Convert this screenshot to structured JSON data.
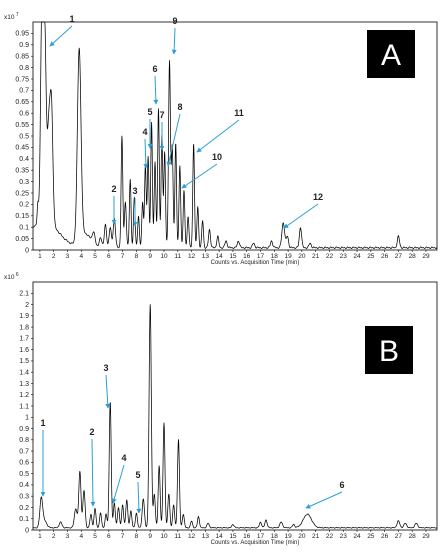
{
  "chart_data": [
    {
      "type": "line",
      "panel_label": "A",
      "y_multiplier": "x10 7",
      "xlabel": "Counts vs. Acquisition Time (min)",
      "ylabel": "",
      "xlim": [
        0.5,
        29.8
      ],
      "ylim": [
        0,
        1.0
      ],
      "x_ticks": [
        "1",
        "2",
        "3",
        "4",
        "5",
        "6",
        "7",
        "8",
        "9",
        "10",
        "11",
        "12",
        "13",
        "14",
        "15",
        "16",
        "17",
        "18",
        "19",
        "20",
        "21",
        "22",
        "23",
        "24",
        "25",
        "26",
        "27",
        "28",
        "29"
      ],
      "y_ticks": [
        "0",
        "0.05",
        "0.1",
        "0.15",
        "0.2",
        "0.25",
        "0.3",
        "0.35",
        "0.4",
        "0.45",
        "0.5",
        "0.55",
        "0.6",
        "0.65",
        "0.7",
        "0.75",
        "0.8",
        "0.85",
        "0.9",
        "0.95"
      ],
      "line_color": "#000000",
      "baseline": 0.01,
      "peaks": [
        {
          "x": 0.85,
          "y": 0.08,
          "w": 0.05
        },
        {
          "x": 1.15,
          "y": 0.93,
          "w": 0.1
        },
        {
          "x": 1.35,
          "y": 0.78,
          "w": 0.1
        },
        {
          "x": 1.65,
          "y": 0.42,
          "w": 0.12
        },
        {
          "x": 1.85,
          "y": 0.45,
          "w": 0.1
        },
        {
          "x": 1.3,
          "y": 0.12,
          "w": 1.0
        },
        {
          "x": 3.85,
          "y": 0.84,
          "w": 0.13
        },
        {
          "x": 4.3,
          "y": 0.06,
          "w": 0.4
        },
        {
          "x": 4.9,
          "y": 0.05,
          "w": 0.1
        },
        {
          "x": 5.4,
          "y": 0.04,
          "w": 0.1
        },
        {
          "x": 5.75,
          "y": 0.1,
          "w": 0.08
        },
        {
          "x": 6.1,
          "y": 0.09,
          "w": 0.08
        },
        {
          "x": 6.4,
          "y": 0.13,
          "w": 0.08
        },
        {
          "x": 6.95,
          "y": 0.49,
          "w": 0.06
        },
        {
          "x": 7.2,
          "y": 0.2,
          "w": 0.07
        },
        {
          "x": 7.55,
          "y": 0.3,
          "w": 0.06
        },
        {
          "x": 7.85,
          "y": 0.22,
          "w": 0.06
        },
        {
          "x": 8.15,
          "y": 0.14,
          "w": 0.06
        },
        {
          "x": 8.45,
          "y": 0.2,
          "w": 0.06
        },
        {
          "x": 8.65,
          "y": 0.36,
          "w": 0.06
        },
        {
          "x": 8.85,
          "y": 0.4,
          "w": 0.06
        },
        {
          "x": 9.1,
          "y": 0.55,
          "w": 0.06
        },
        {
          "x": 9.35,
          "y": 0.38,
          "w": 0.06
        },
        {
          "x": 9.6,
          "y": 0.61,
          "w": 0.06
        },
        {
          "x": 9.85,
          "y": 0.5,
          "w": 0.06
        },
        {
          "x": 10.05,
          "y": 0.42,
          "w": 0.06
        },
        {
          "x": 10.4,
          "y": 0.82,
          "w": 0.07
        },
        {
          "x": 10.6,
          "y": 0.44,
          "w": 0.06
        },
        {
          "x": 10.85,
          "y": 0.46,
          "w": 0.06
        },
        {
          "x": 11.15,
          "y": 0.36,
          "w": 0.06
        },
        {
          "x": 11.45,
          "y": 0.25,
          "w": 0.06
        },
        {
          "x": 11.75,
          "y": 0.14,
          "w": 0.06
        },
        {
          "x": 12.15,
          "y": 0.46,
          "w": 0.06
        },
        {
          "x": 12.45,
          "y": 0.18,
          "w": 0.06
        },
        {
          "x": 12.8,
          "y": 0.12,
          "w": 0.06
        },
        {
          "x": 13.3,
          "y": 0.08,
          "w": 0.07
        },
        {
          "x": 13.9,
          "y": 0.05,
          "w": 0.07
        },
        {
          "x": 14.5,
          "y": 0.03,
          "w": 0.08
        },
        {
          "x": 15.4,
          "y": 0.03,
          "w": 0.08
        },
        {
          "x": 16.5,
          "y": 0.02,
          "w": 0.08
        },
        {
          "x": 17.8,
          "y": 0.03,
          "w": 0.08
        },
        {
          "x": 18.65,
          "y": 0.11,
          "w": 0.1
        },
        {
          "x": 18.95,
          "y": 0.05,
          "w": 0.08
        },
        {
          "x": 19.9,
          "y": 0.09,
          "w": 0.08
        },
        {
          "x": 20.6,
          "y": 0.02,
          "w": 0.08
        },
        {
          "x": 27.0,
          "y": 0.05,
          "w": 0.08
        }
      ],
      "annotations": [
        {
          "label": "1",
          "x": 1.15,
          "y": 0.93
        },
        {
          "label": "2",
          "x": 6.2,
          "y": 0.12
        },
        {
          "label": "3",
          "x": 7.9,
          "y": 0.13
        },
        {
          "label": "4",
          "x": 8.7,
          "y": 0.38
        },
        {
          "label": "5",
          "x": 9.1,
          "y": 0.5
        },
        {
          "label": "6",
          "x": 9.6,
          "y": 0.6
        },
        {
          "label": "7",
          "x": 9.9,
          "y": 0.46
        },
        {
          "label": "8",
          "x": 10.1,
          "y": 0.4
        },
        {
          "label": "9",
          "x": 10.4,
          "y": 0.88
        },
        {
          "label": "10",
          "x": 11.1,
          "y": 0.28
        },
        {
          "label": "11",
          "x": 12.25,
          "y": 0.47
        },
        {
          "label": "12",
          "x": 18.7,
          "y": 0.12
        }
      ]
    },
    {
      "type": "line",
      "panel_label": "B",
      "y_multiplier": "x10 6",
      "xlabel": "Counts vs. Acquisition Time (min)",
      "ylabel": "",
      "xlim": [
        0.5,
        29.8
      ],
      "ylim": [
        0,
        2.2
      ],
      "x_ticks": [
        "1",
        "2",
        "3",
        "4",
        "5",
        "6",
        "7",
        "8",
        "9",
        "10",
        "11",
        "12",
        "13",
        "14",
        "15",
        "16",
        "17",
        "18",
        "19",
        "20",
        "21",
        "22",
        "23",
        "24",
        "25",
        "26",
        "27",
        "28",
        "29"
      ],
      "y_ticks": [
        "0",
        "0.1",
        "0.2",
        "0.3",
        "0.4",
        "0.5",
        "0.6",
        "0.7",
        "0.8",
        "0.9",
        "1",
        "1.1",
        "1.2",
        "1.3",
        "1.4",
        "1.5",
        "1.6",
        "1.7",
        "1.8",
        "1.9",
        "2",
        "2.1"
      ],
      "line_color": "#000000",
      "baseline": 0.02,
      "peaks": [
        {
          "x": 1.1,
          "y": 0.26,
          "w": 0.1
        },
        {
          "x": 1.35,
          "y": 0.06,
          "w": 0.15
        },
        {
          "x": 2.5,
          "y": 0.05,
          "w": 0.1
        },
        {
          "x": 3.6,
          "y": 0.17,
          "w": 0.1
        },
        {
          "x": 3.9,
          "y": 0.5,
          "w": 0.08
        },
        {
          "x": 4.2,
          "y": 0.33,
          "w": 0.08
        },
        {
          "x": 4.7,
          "y": 0.12,
          "w": 0.07
        },
        {
          "x": 5.0,
          "y": 0.17,
          "w": 0.07
        },
        {
          "x": 5.4,
          "y": 0.13,
          "w": 0.07
        },
        {
          "x": 5.8,
          "y": 0.12,
          "w": 0.07
        },
        {
          "x": 6.1,
          "y": 1.12,
          "w": 0.07
        },
        {
          "x": 6.4,
          "y": 0.22,
          "w": 0.07
        },
        {
          "x": 6.7,
          "y": 0.18,
          "w": 0.07
        },
        {
          "x": 7.0,
          "y": 0.2,
          "w": 0.07
        },
        {
          "x": 7.3,
          "y": 0.25,
          "w": 0.07
        },
        {
          "x": 7.6,
          "y": 0.15,
          "w": 0.07
        },
        {
          "x": 8.0,
          "y": 0.13,
          "w": 0.07
        },
        {
          "x": 8.5,
          "y": 0.26,
          "w": 0.08
        },
        {
          "x": 9.0,
          "y": 1.98,
          "w": 0.08
        },
        {
          "x": 9.3,
          "y": 0.3,
          "w": 0.07
        },
        {
          "x": 9.65,
          "y": 0.55,
          "w": 0.07
        },
        {
          "x": 10.0,
          "y": 0.93,
          "w": 0.07
        },
        {
          "x": 10.35,
          "y": 0.3,
          "w": 0.07
        },
        {
          "x": 10.7,
          "y": 0.2,
          "w": 0.07
        },
        {
          "x": 11.05,
          "y": 0.78,
          "w": 0.07
        },
        {
          "x": 11.4,
          "y": 0.12,
          "w": 0.07
        },
        {
          "x": 12.0,
          "y": 0.06,
          "w": 0.07
        },
        {
          "x": 12.5,
          "y": 0.1,
          "w": 0.07
        },
        {
          "x": 13.2,
          "y": 0.04,
          "w": 0.08
        },
        {
          "x": 15.0,
          "y": 0.03,
          "w": 0.08
        },
        {
          "x": 17.0,
          "y": 0.05,
          "w": 0.08
        },
        {
          "x": 17.4,
          "y": 0.07,
          "w": 0.08
        },
        {
          "x": 18.5,
          "y": 0.05,
          "w": 0.1
        },
        {
          "x": 19.4,
          "y": 0.03,
          "w": 0.08
        },
        {
          "x": 20.4,
          "y": 0.12,
          "w": 0.3
        },
        {
          "x": 27.0,
          "y": 0.06,
          "w": 0.1
        },
        {
          "x": 27.5,
          "y": 0.04,
          "w": 0.1
        },
        {
          "x": 28.3,
          "y": 0.04,
          "w": 0.1
        }
      ],
      "annotations": [
        {
          "label": "1",
          "x": 1.1,
          "y": 0.26
        },
        {
          "label": "2",
          "x": 5.0,
          "y": 0.17
        },
        {
          "label": "3",
          "x": 6.1,
          "y": 1.15
        },
        {
          "label": "4",
          "x": 6.3,
          "y": 0.17
        },
        {
          "label": "5",
          "x": 8.4,
          "y": 0.09
        },
        {
          "label": "6",
          "x": 20.4,
          "y": 0.12
        }
      ]
    }
  ],
  "style": {
    "arrow_color": "#2e9fd3",
    "panel_letter_bg": "#000000",
    "panel_letter_color": "#ffffff",
    "axis_color": "#000000"
  }
}
